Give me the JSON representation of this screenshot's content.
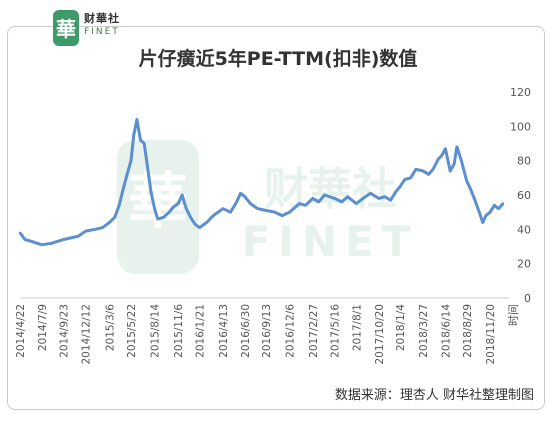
{
  "brand": {
    "name_cn": "财華社",
    "name_en": "FINET",
    "logo_char": "華"
  },
  "watermark": {
    "text_cn": "财華社",
    "text_en": "FINET"
  },
  "source_note": "数据来源：理杏人    财华社整理制图",
  "colors": {
    "line": "#5b8fd0",
    "logo_green": "#3f9a6a",
    "axis_text": "#555555",
    "grid": "#e8e8e8"
  },
  "chart_data": {
    "type": "line",
    "title": "片仔癀近5年PE-TTM(扣非)数值",
    "xlabel": "时间",
    "ylabel": "",
    "ylim": [
      0,
      120
    ],
    "yticks": [
      0,
      20,
      40,
      60,
      80,
      100,
      120
    ],
    "grid": false,
    "xticks": [
      "2014/4/22",
      "2014/7/9",
      "2014/9/23",
      "2014/12/12",
      "2015/3/6",
      "2015/5/22",
      "2015/8/14",
      "2015/11/6",
      "2016/1/21",
      "2016/4/13",
      "2016/6/30",
      "2016/9/13",
      "2016/12/6",
      "2017/2/27",
      "2017/5/16",
      "2017/8/1",
      "2017/10/20",
      "2018/1/4",
      "2018/3/27",
      "2018/6/14",
      "2018/8/29",
      "2018/11/20"
    ],
    "series": [
      {
        "name": "",
        "x": [
          "2014/4/22",
          "2014/5/10",
          "2014/6/1",
          "2014/7/9",
          "2014/8/15",
          "2014/9/23",
          "2014/10/20",
          "2014/11/15",
          "2014/12/12",
          "2015/1/15",
          "2015/2/10",
          "2015/3/6",
          "2015/3/25",
          "2015/4/10",
          "2015/4/25",
          "2015/5/8",
          "2015/5/22",
          "2015/6/1",
          "2015/6/12",
          "2015/6/25",
          "2015/7/8",
          "2015/7/20",
          "2015/8/1",
          "2015/8/14",
          "2015/8/25",
          "2015/9/15",
          "2015/10/5",
          "2015/10/20",
          "2015/11/6",
          "2015/11/20",
          "2015/12/5",
          "2015/12/20",
          "2016/1/5",
          "2016/1/21",
          "2016/2/15",
          "2016/3/10",
          "2016/4/13",
          "2016/5/10",
          "2016/6/1",
          "2016/6/15",
          "2016/6/30",
          "2016/7/20",
          "2016/8/15",
          "2016/9/13",
          "2016/10/15",
          "2016/11/10",
          "2016/12/6",
          "2017/1/10",
          "2017/2/1",
          "2017/2/27",
          "2017/3/20",
          "2017/4/10",
          "2017/5/16",
          "2017/6/10",
          "2017/7/1",
          "2017/8/1",
          "2017/8/25",
          "2017/9/20",
          "2017/10/20",
          "2017/11/10",
          "2017/12/1",
          "2017/12/20",
          "2018/1/4",
          "2018/1/20",
          "2018/2/10",
          "2018/3/1",
          "2018/3/27",
          "2018/4/15",
          "2018/5/1",
          "2018/5/20",
          "2018/6/1",
          "2018/6/14",
          "2018/7/1",
          "2018/7/15",
          "2018/7/25",
          "2018/8/10",
          "2018/8/29",
          "2018/9/10",
          "2018/9/25",
          "2018/10/10",
          "2018/10/25",
          "2018/11/5",
          "2018/11/20",
          "2018/12/5",
          "2018/12/20",
          "2019/1/5"
        ],
        "values": [
          38,
          34,
          33,
          31,
          32,
          34,
          35,
          36,
          39,
          40,
          41,
          44,
          47,
          54,
          64,
          72,
          80,
          95,
          104,
          92,
          90,
          76,
          62,
          52,
          46,
          47,
          50,
          53,
          55,
          60,
          52,
          47,
          43,
          41,
          44,
          48,
          52,
          50,
          56,
          61,
          59,
          55,
          52,
          51,
          50,
          48,
          50,
          55,
          54,
          58,
          56,
          60,
          58,
          56,
          59,
          55,
          58,
          61,
          58,
          59,
          57,
          62,
          65,
          69,
          70,
          75,
          74,
          72,
          75,
          81,
          83,
          87,
          74,
          78,
          88,
          80,
          68,
          64,
          58,
          51,
          44,
          48,
          50,
          54,
          52,
          55
        ]
      }
    ]
  }
}
